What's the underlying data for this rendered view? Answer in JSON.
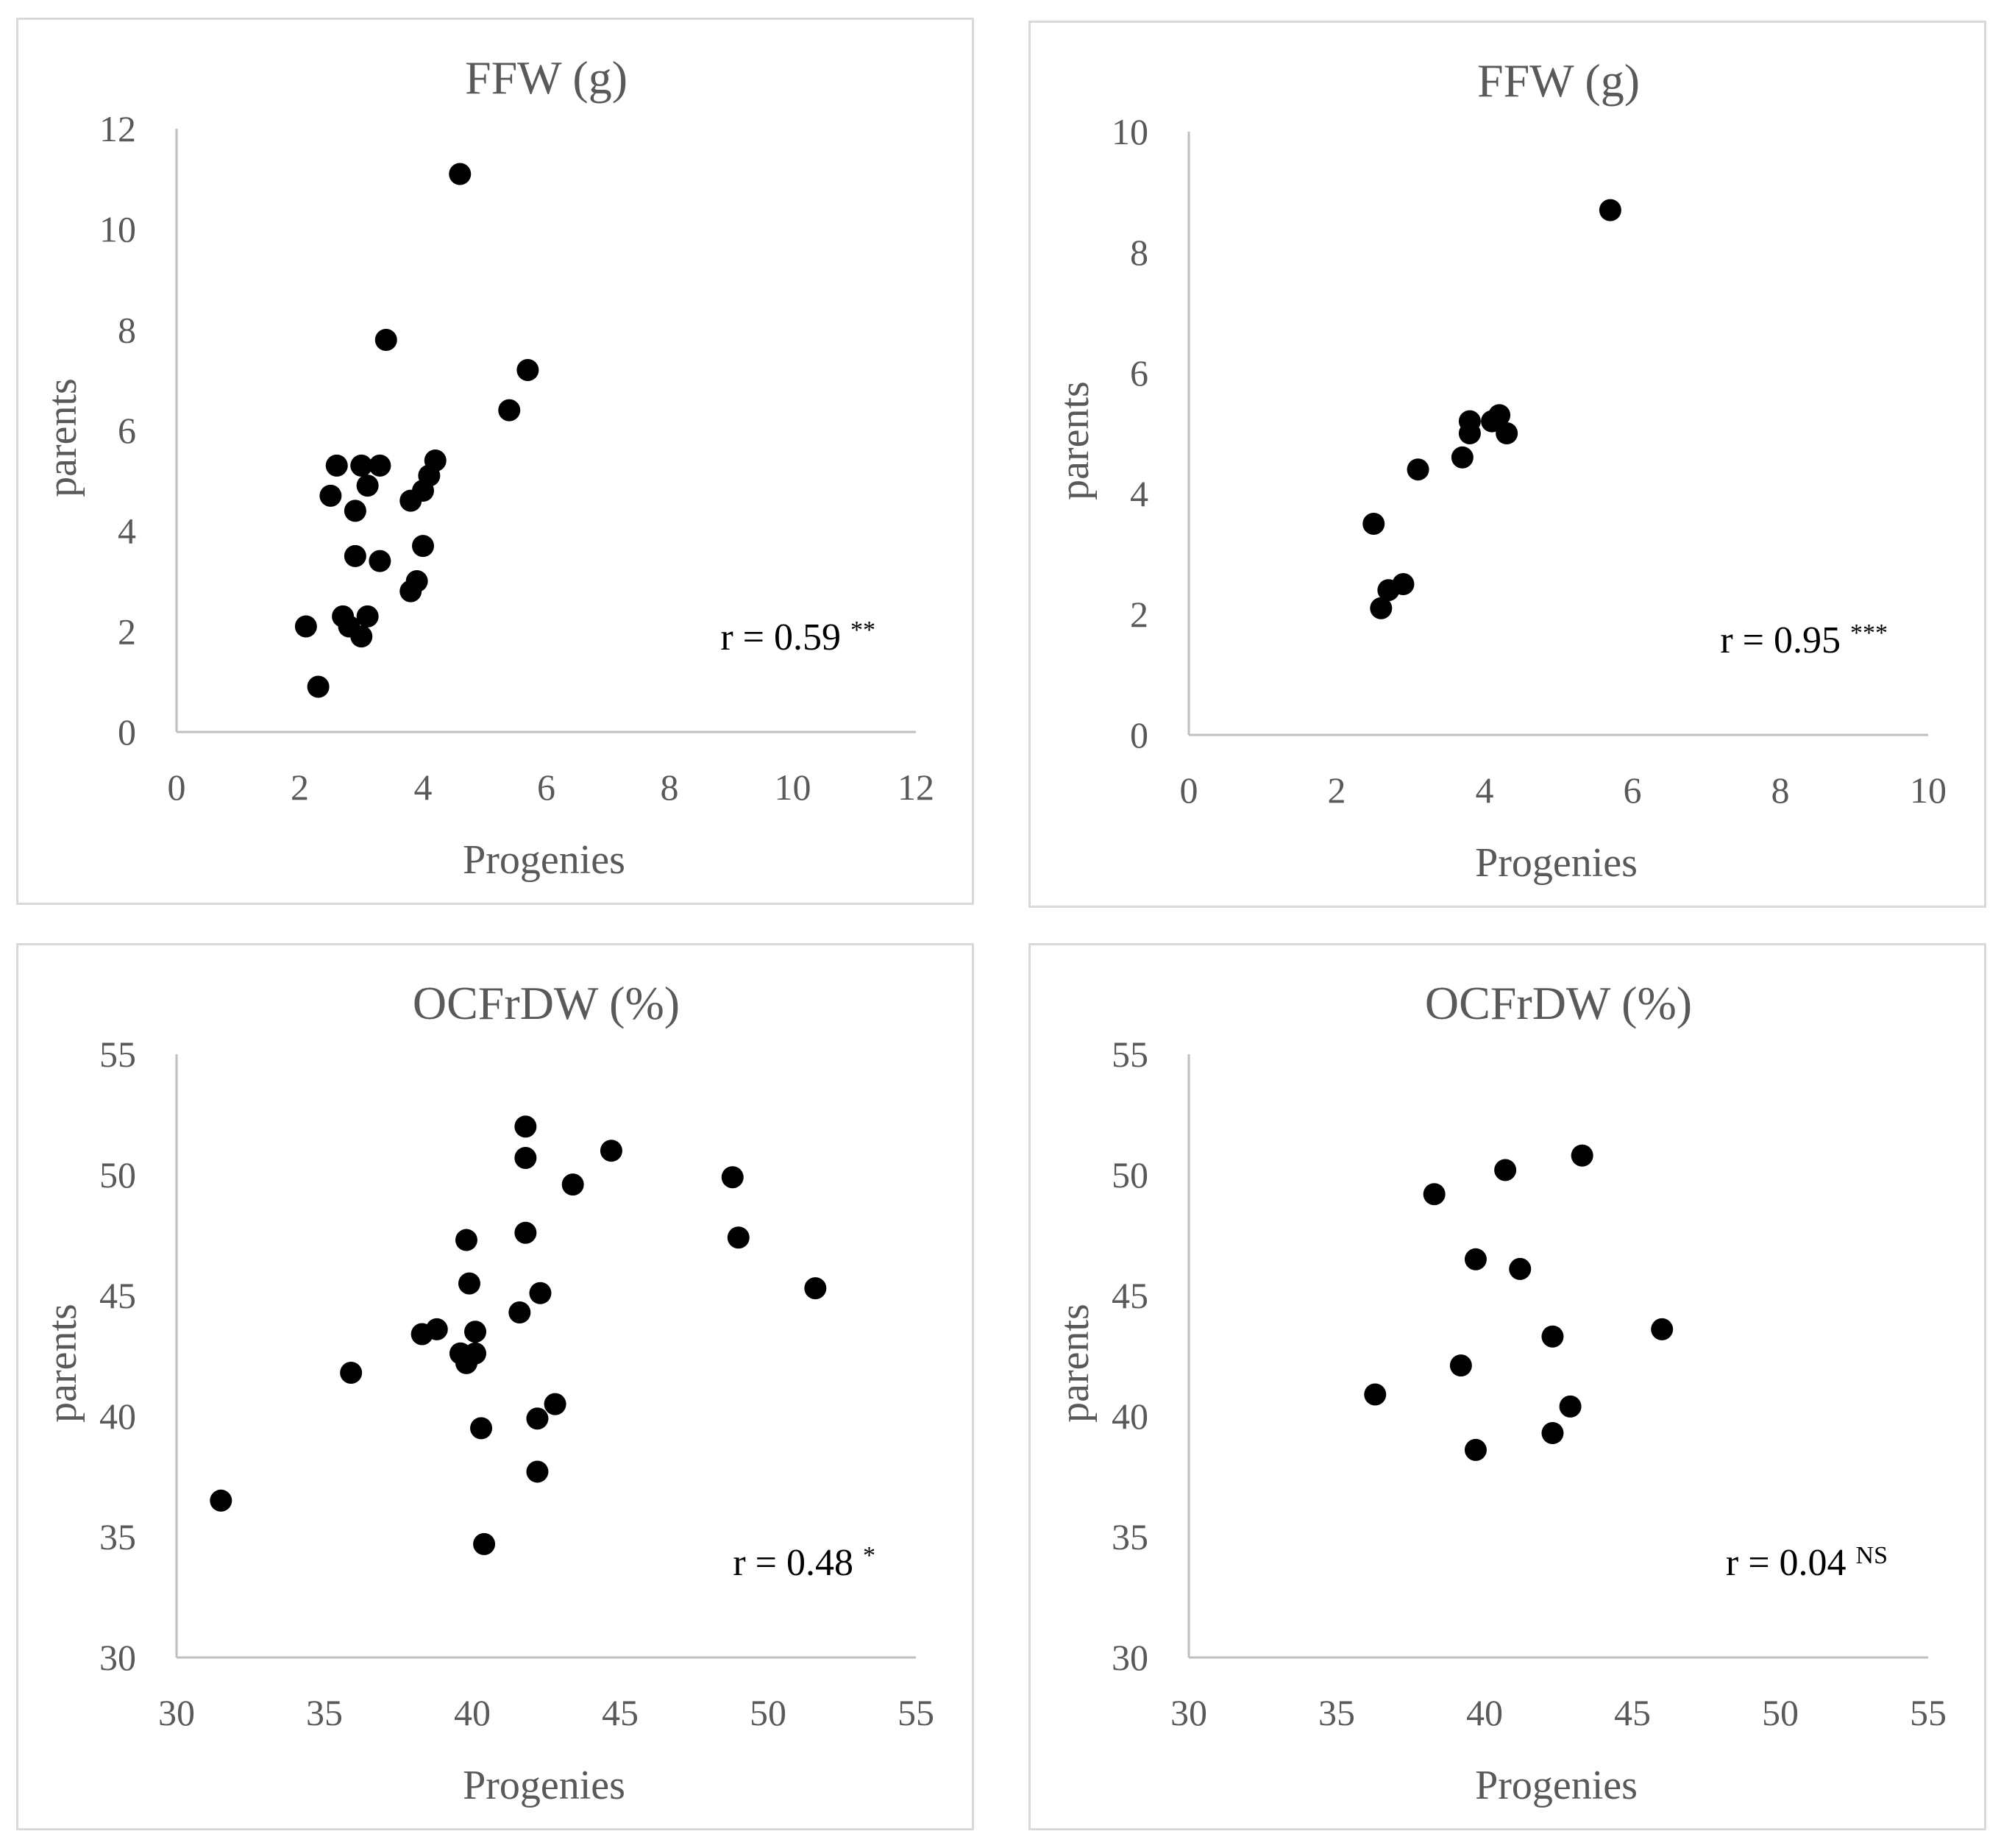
{
  "colors": {
    "point": "#000000",
    "axis": "#bfbfbf",
    "text": "#595959",
    "border": "#d9d9d9"
  },
  "chart_data": [
    {
      "type": "scatter",
      "title": "FFW (g)",
      "xlabel": "Progenies",
      "ylabel": "parents",
      "xlim": [
        0,
        12
      ],
      "ylim": [
        0,
        12
      ],
      "xticks": [
        0,
        2,
        4,
        6,
        8,
        10,
        12
      ],
      "yticks": [
        0,
        2,
        4,
        6,
        8,
        10,
        12
      ],
      "annotation": {
        "text": "r = 0.59",
        "sig": "**"
      },
      "points": [
        [
          4.6,
          11.1
        ],
        [
          3.4,
          7.8
        ],
        [
          5.7,
          7.2
        ],
        [
          5.4,
          6.4
        ],
        [
          2.6,
          5.3
        ],
        [
          3.0,
          5.3
        ],
        [
          3.3,
          5.3
        ],
        [
          4.2,
          5.4
        ],
        [
          4.1,
          5.1
        ],
        [
          3.1,
          4.9
        ],
        [
          4.0,
          4.8
        ],
        [
          2.5,
          4.7
        ],
        [
          3.8,
          4.6
        ],
        [
          2.9,
          4.4
        ],
        [
          4.0,
          3.7
        ],
        [
          2.9,
          3.5
        ],
        [
          3.3,
          3.4
        ],
        [
          3.9,
          3.0
        ],
        [
          3.8,
          2.8
        ],
        [
          2.7,
          2.3
        ],
        [
          3.1,
          2.3
        ],
        [
          2.8,
          2.1
        ],
        [
          2.1,
          2.1
        ],
        [
          3.0,
          1.9
        ],
        [
          2.3,
          0.9
        ]
      ]
    },
    {
      "type": "scatter",
      "title": "FFW (g)",
      "xlabel": "Progenies",
      "ylabel": "parents",
      "xlim": [
        0,
        10
      ],
      "ylim": [
        0,
        10
      ],
      "xticks": [
        0,
        2,
        4,
        6,
        8,
        10
      ],
      "yticks": [
        0,
        2,
        4,
        6,
        8,
        10
      ],
      "annotation": {
        "text": "r = 0.95",
        "sig": "***"
      },
      "points": [
        [
          5.7,
          8.7
        ],
        [
          4.2,
          5.3
        ],
        [
          4.1,
          5.2
        ],
        [
          3.8,
          5.2
        ],
        [
          4.3,
          5.0
        ],
        [
          3.8,
          5.0
        ],
        [
          3.1,
          4.4
        ],
        [
          3.7,
          4.6
        ],
        [
          2.5,
          3.5
        ],
        [
          2.9,
          2.5
        ],
        [
          2.7,
          2.4
        ],
        [
          2.6,
          2.1
        ]
      ]
    },
    {
      "type": "scatter",
      "title": "OCFrDW (%)",
      "xlabel": "Progenies",
      "ylabel": "parents",
      "xlim": [
        30,
        55
      ],
      "ylim": [
        30,
        55
      ],
      "xticks": [
        30,
        35,
        40,
        45,
        50,
        55
      ],
      "yticks": [
        30,
        35,
        40,
        45,
        50,
        55
      ],
      "annotation": {
        "text": "r = 0.48",
        "sig": "*"
      },
      "points": [
        [
          41.8,
          52.0
        ],
        [
          44.7,
          51.0
        ],
        [
          41.8,
          50.7
        ],
        [
          43.4,
          49.6
        ],
        [
          48.8,
          49.9
        ],
        [
          49.0,
          47.4
        ],
        [
          41.8,
          47.6
        ],
        [
          39.8,
          47.3
        ],
        [
          39.9,
          45.5
        ],
        [
          42.3,
          45.1
        ],
        [
          41.6,
          44.3
        ],
        [
          51.6,
          45.3
        ],
        [
          38.8,
          43.6
        ],
        [
          38.3,
          43.4
        ],
        [
          40.1,
          43.5
        ],
        [
          39.6,
          42.6
        ],
        [
          40.1,
          42.6
        ],
        [
          39.8,
          42.2
        ],
        [
          35.9,
          41.8
        ],
        [
          42.8,
          40.5
        ],
        [
          42.2,
          39.9
        ],
        [
          40.3,
          39.5
        ],
        [
          42.2,
          37.7
        ],
        [
          31.5,
          36.5
        ],
        [
          40.4,
          34.7
        ]
      ]
    },
    {
      "type": "scatter",
      "title": "OCFrDW (%)",
      "xlabel": "Progenies",
      "ylabel": "parents",
      "xlim": [
        30,
        55
      ],
      "ylim": [
        30,
        55
      ],
      "xticks": [
        30,
        35,
        40,
        45,
        50,
        55
      ],
      "yticks": [
        30,
        35,
        40,
        45,
        50,
        55
      ],
      "annotation": {
        "text": "r = 0.04",
        "sig": "NS"
      },
      "points": [
        [
          43.3,
          50.8
        ],
        [
          40.7,
          50.2
        ],
        [
          38.3,
          49.2
        ],
        [
          39.7,
          46.5
        ],
        [
          41.2,
          46.1
        ],
        [
          46.0,
          43.6
        ],
        [
          42.3,
          43.3
        ],
        [
          39.2,
          42.1
        ],
        [
          36.3,
          40.9
        ],
        [
          42.9,
          40.4
        ],
        [
          42.3,
          39.3
        ],
        [
          39.7,
          38.6
        ]
      ]
    }
  ]
}
